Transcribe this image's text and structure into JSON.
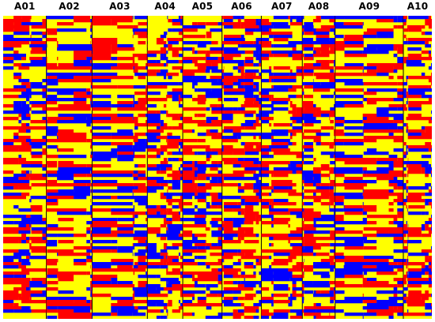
{
  "chromosomes": [
    "A01",
    "A02",
    "A03",
    "A04",
    "A05",
    "A06",
    "A07",
    "A08",
    "A09",
    "A10"
  ],
  "chromosome_relative_lengths": [
    1.0,
    1.06,
    1.28,
    0.82,
    0.91,
    0.91,
    0.95,
    0.76,
    1.58,
    0.66
  ],
  "lines_count": 96,
  "genotype_colors": {
    "parent_a": "#ff0000",
    "parent_b": "#0000ff",
    "heterozygous": "#ffff00"
  },
  "separator_color": "#000000"
}
